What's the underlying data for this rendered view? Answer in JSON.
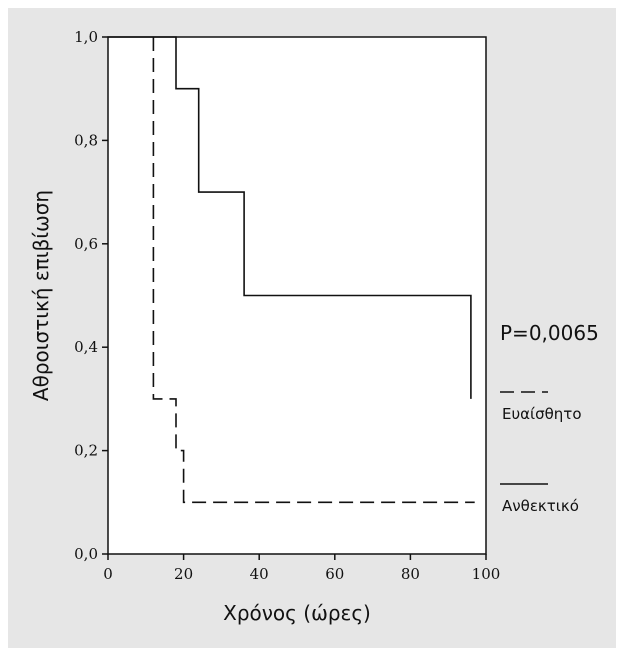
{
  "chart_data": {
    "type": "line",
    "step": true,
    "xlabel": "Χρόνος (ώρες)",
    "ylabel": "Αθροιστική επιβίωση",
    "xlim": [
      0,
      100
    ],
    "ylim": [
      0,
      1
    ],
    "xticks": [
      0,
      20,
      40,
      60,
      80,
      100
    ],
    "xtick_labels": [
      "0",
      "20",
      "40",
      "60",
      "80",
      "100"
    ],
    "yticks": [
      0,
      0.2,
      0.4,
      0.6,
      0.8,
      1.0
    ],
    "ytick_labels": [
      "0,0",
      "0,2",
      "0,4",
      "0,6",
      "0,8",
      "1,0"
    ],
    "grid": false,
    "annotation": "P=0,0065",
    "legend_position": "right",
    "series": [
      {
        "name": "Ευαίσθητο",
        "line_style": "dashed",
        "color": "#111111",
        "points": [
          [
            12,
            1.0
          ],
          [
            12,
            0.3
          ],
          [
            18,
            0.3
          ],
          [
            18,
            0.2
          ],
          [
            20,
            0.2
          ],
          [
            20,
            0.1
          ],
          [
            97,
            0.1
          ]
        ]
      },
      {
        "name": "Ανθεκτικό",
        "line_style": "solid",
        "color": "#111111",
        "points": [
          [
            0,
            1.0
          ],
          [
            18,
            1.0
          ],
          [
            18,
            0.9
          ],
          [
            24,
            0.9
          ],
          [
            24,
            0.7
          ],
          [
            36,
            0.7
          ],
          [
            36,
            0.5
          ],
          [
            96,
            0.5
          ],
          [
            96,
            0.3
          ]
        ]
      }
    ]
  }
}
